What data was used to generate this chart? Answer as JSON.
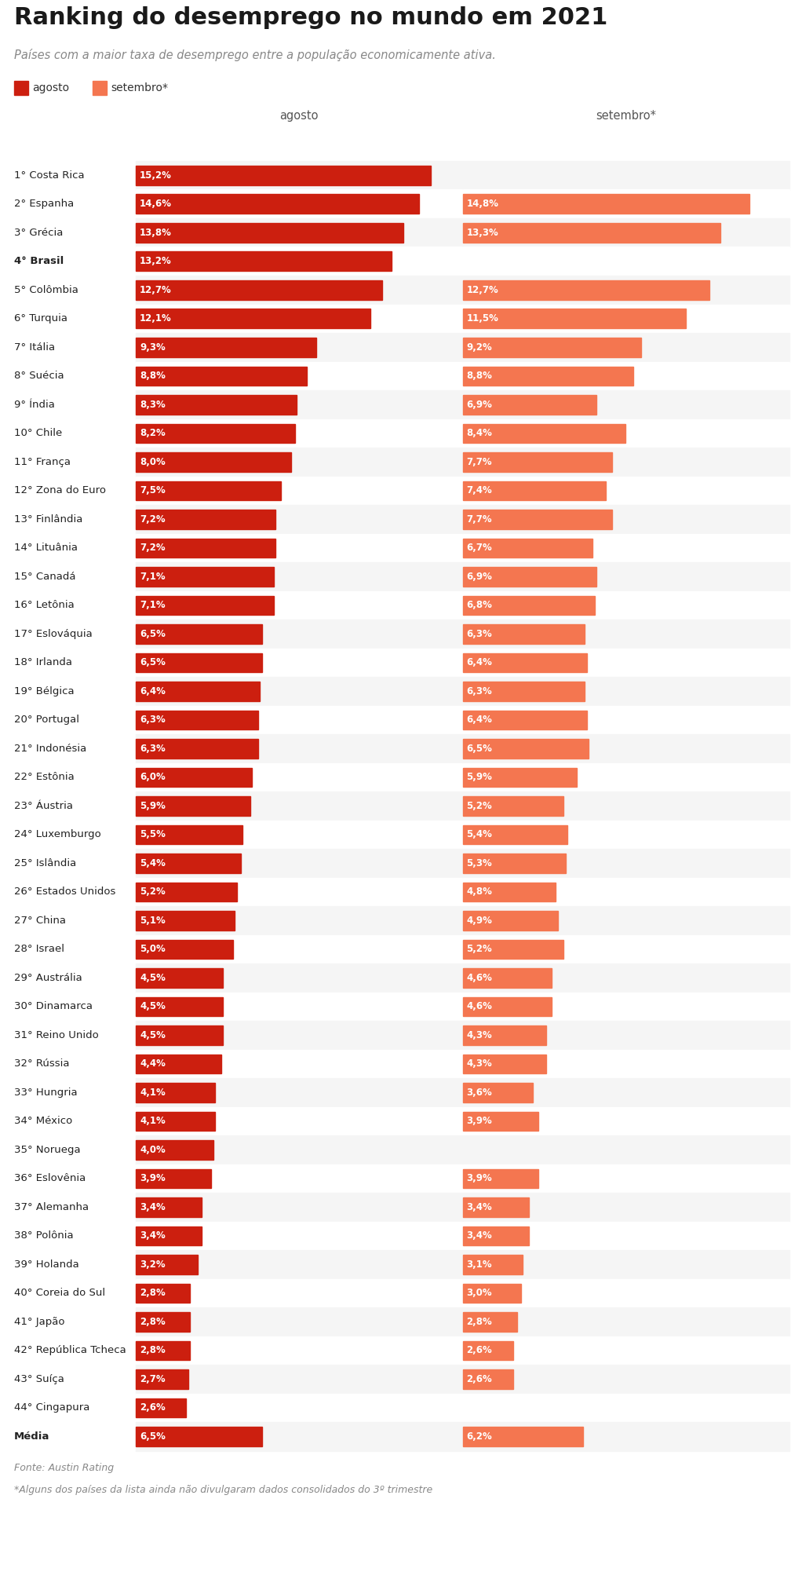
{
  "title": "Ranking do desemprego no mundo em 2021",
  "subtitle": "Países com a maior taxa de desemprego entre a população economicamente ativa.",
  "legend_agosto": "agosto",
  "legend_setembro": "setembro*",
  "col_header_agosto": "agosto",
  "col_header_setembro": "setembro*",
  "footer1": "Fonte: Austin Rating",
  "footer2": "*Alguns dos países da lista ainda não divulgaram dados consolidados do 3º trimestre",
  "color_agosto": "#cc1f0f",
  "color_setembro": "#f47650",
  "color_bg_even": "#f0f0f0",
  "color_bg_odd": "#ffffff",
  "rows": [
    {
      "rank": "1°",
      "country": "Costa Rica",
      "bold": false,
      "agosto": 15.2,
      "setembro": null
    },
    {
      "rank": "2°",
      "country": "Espanha",
      "bold": false,
      "agosto": 14.6,
      "setembro": 14.8
    },
    {
      "rank": "3°",
      "country": "Grécia",
      "bold": false,
      "agosto": 13.8,
      "setembro": 13.3
    },
    {
      "rank": "4°",
      "country": "Brasil",
      "bold": true,
      "agosto": 13.2,
      "setembro": null
    },
    {
      "rank": "5°",
      "country": "Colômbia",
      "bold": false,
      "agosto": 12.7,
      "setembro": 12.7
    },
    {
      "rank": "6°",
      "country": "Turquia",
      "bold": false,
      "agosto": 12.1,
      "setembro": 11.5
    },
    {
      "rank": "7°",
      "country": "Itália",
      "bold": false,
      "agosto": 9.3,
      "setembro": 9.2
    },
    {
      "rank": "8°",
      "country": "Suécia",
      "bold": false,
      "agosto": 8.8,
      "setembro": 8.8
    },
    {
      "rank": "9°",
      "country": "Índia",
      "bold": false,
      "agosto": 8.3,
      "setembro": 6.9
    },
    {
      "rank": "10°",
      "country": "Chile",
      "bold": false,
      "agosto": 8.2,
      "setembro": 8.4
    },
    {
      "rank": "11°",
      "country": "França",
      "bold": false,
      "agosto": 8.0,
      "setembro": 7.7
    },
    {
      "rank": "12°",
      "country": "Zona do Euro",
      "bold": false,
      "agosto": 7.5,
      "setembro": 7.4
    },
    {
      "rank": "13°",
      "country": "Finlândia",
      "bold": false,
      "agosto": 7.2,
      "setembro": 7.7
    },
    {
      "rank": "14°",
      "country": "Lituânia",
      "bold": false,
      "agosto": 7.2,
      "setembro": 6.7
    },
    {
      "rank": "15°",
      "country": "Canadá",
      "bold": false,
      "agosto": 7.1,
      "setembro": 6.9
    },
    {
      "rank": "16°",
      "country": "Letônia",
      "bold": false,
      "agosto": 7.1,
      "setembro": 6.8
    },
    {
      "rank": "17°",
      "country": "Eslováquia",
      "bold": false,
      "agosto": 6.5,
      "setembro": 6.3
    },
    {
      "rank": "18°",
      "country": "Irlanda",
      "bold": false,
      "agosto": 6.5,
      "setembro": 6.4
    },
    {
      "rank": "19°",
      "country": "Bélgica",
      "bold": false,
      "agosto": 6.4,
      "setembro": 6.3
    },
    {
      "rank": "20°",
      "country": "Portugal",
      "bold": false,
      "agosto": 6.3,
      "setembro": 6.4
    },
    {
      "rank": "21°",
      "country": "Indonésia",
      "bold": false,
      "agosto": 6.3,
      "setembro": 6.5
    },
    {
      "rank": "22°",
      "country": "Estônia",
      "bold": false,
      "agosto": 6.0,
      "setembro": 5.9
    },
    {
      "rank": "23°",
      "country": "Áustria",
      "bold": false,
      "agosto": 5.9,
      "setembro": 5.2
    },
    {
      "rank": "24°",
      "country": "Luxemburgo",
      "bold": false,
      "agosto": 5.5,
      "setembro": 5.4
    },
    {
      "rank": "25°",
      "country": "Islândia",
      "bold": false,
      "agosto": 5.4,
      "setembro": 5.3
    },
    {
      "rank": "26°",
      "country": "Estados Unidos",
      "bold": false,
      "agosto": 5.2,
      "setembro": 4.8
    },
    {
      "rank": "27°",
      "country": "China",
      "bold": false,
      "agosto": 5.1,
      "setembro": 4.9
    },
    {
      "rank": "28°",
      "country": "Israel",
      "bold": false,
      "agosto": 5.0,
      "setembro": 5.2
    },
    {
      "rank": "29°",
      "country": "Austrália",
      "bold": false,
      "agosto": 4.5,
      "setembro": 4.6
    },
    {
      "rank": "30°",
      "country": "Dinamarca",
      "bold": false,
      "agosto": 4.5,
      "setembro": 4.6
    },
    {
      "rank": "31°",
      "country": "Reino Unido",
      "bold": false,
      "agosto": 4.5,
      "setembro": 4.3
    },
    {
      "rank": "32°",
      "country": "Rússia",
      "bold": false,
      "agosto": 4.4,
      "setembro": 4.3
    },
    {
      "rank": "33°",
      "country": "Hungria",
      "bold": false,
      "agosto": 4.1,
      "setembro": 3.6
    },
    {
      "rank": "34°",
      "country": "México",
      "bold": false,
      "agosto": 4.1,
      "setembro": 3.9
    },
    {
      "rank": "35°",
      "country": "Noruega",
      "bold": false,
      "agosto": 4.0,
      "setembro": null
    },
    {
      "rank": "36°",
      "country": "Eslovênia",
      "bold": false,
      "agosto": 3.9,
      "setembro": 3.9
    },
    {
      "rank": "37°",
      "country": "Alemanha",
      "bold": false,
      "agosto": 3.4,
      "setembro": 3.4
    },
    {
      "rank": "38°",
      "country": "Polônia",
      "bold": false,
      "agosto": 3.4,
      "setembro": 3.4
    },
    {
      "rank": "39°",
      "country": "Holanda",
      "bold": false,
      "agosto": 3.2,
      "setembro": 3.1
    },
    {
      "rank": "40°",
      "country": "Coreia do Sul",
      "bold": false,
      "agosto": 2.8,
      "setembro": 3.0
    },
    {
      "rank": "41°",
      "country": "Japão",
      "bold": false,
      "agosto": 2.8,
      "setembro": 2.8
    },
    {
      "rank": "42°",
      "country": "República Tcheca",
      "bold": false,
      "agosto": 2.8,
      "setembro": 2.6
    },
    {
      "rank": "43°",
      "country": "Suíça",
      "bold": false,
      "agosto": 2.7,
      "setembro": 2.6
    },
    {
      "rank": "44°",
      "country": "Cingapura",
      "bold": false,
      "agosto": 2.6,
      "setembro": null
    },
    {
      "rank": "",
      "country": "Média",
      "bold": true,
      "agosto": 6.5,
      "setembro": 6.2
    }
  ],
  "max_value": 16.0,
  "bar_max_agosto": 15.2,
  "bar_max_setembro": 14.8
}
